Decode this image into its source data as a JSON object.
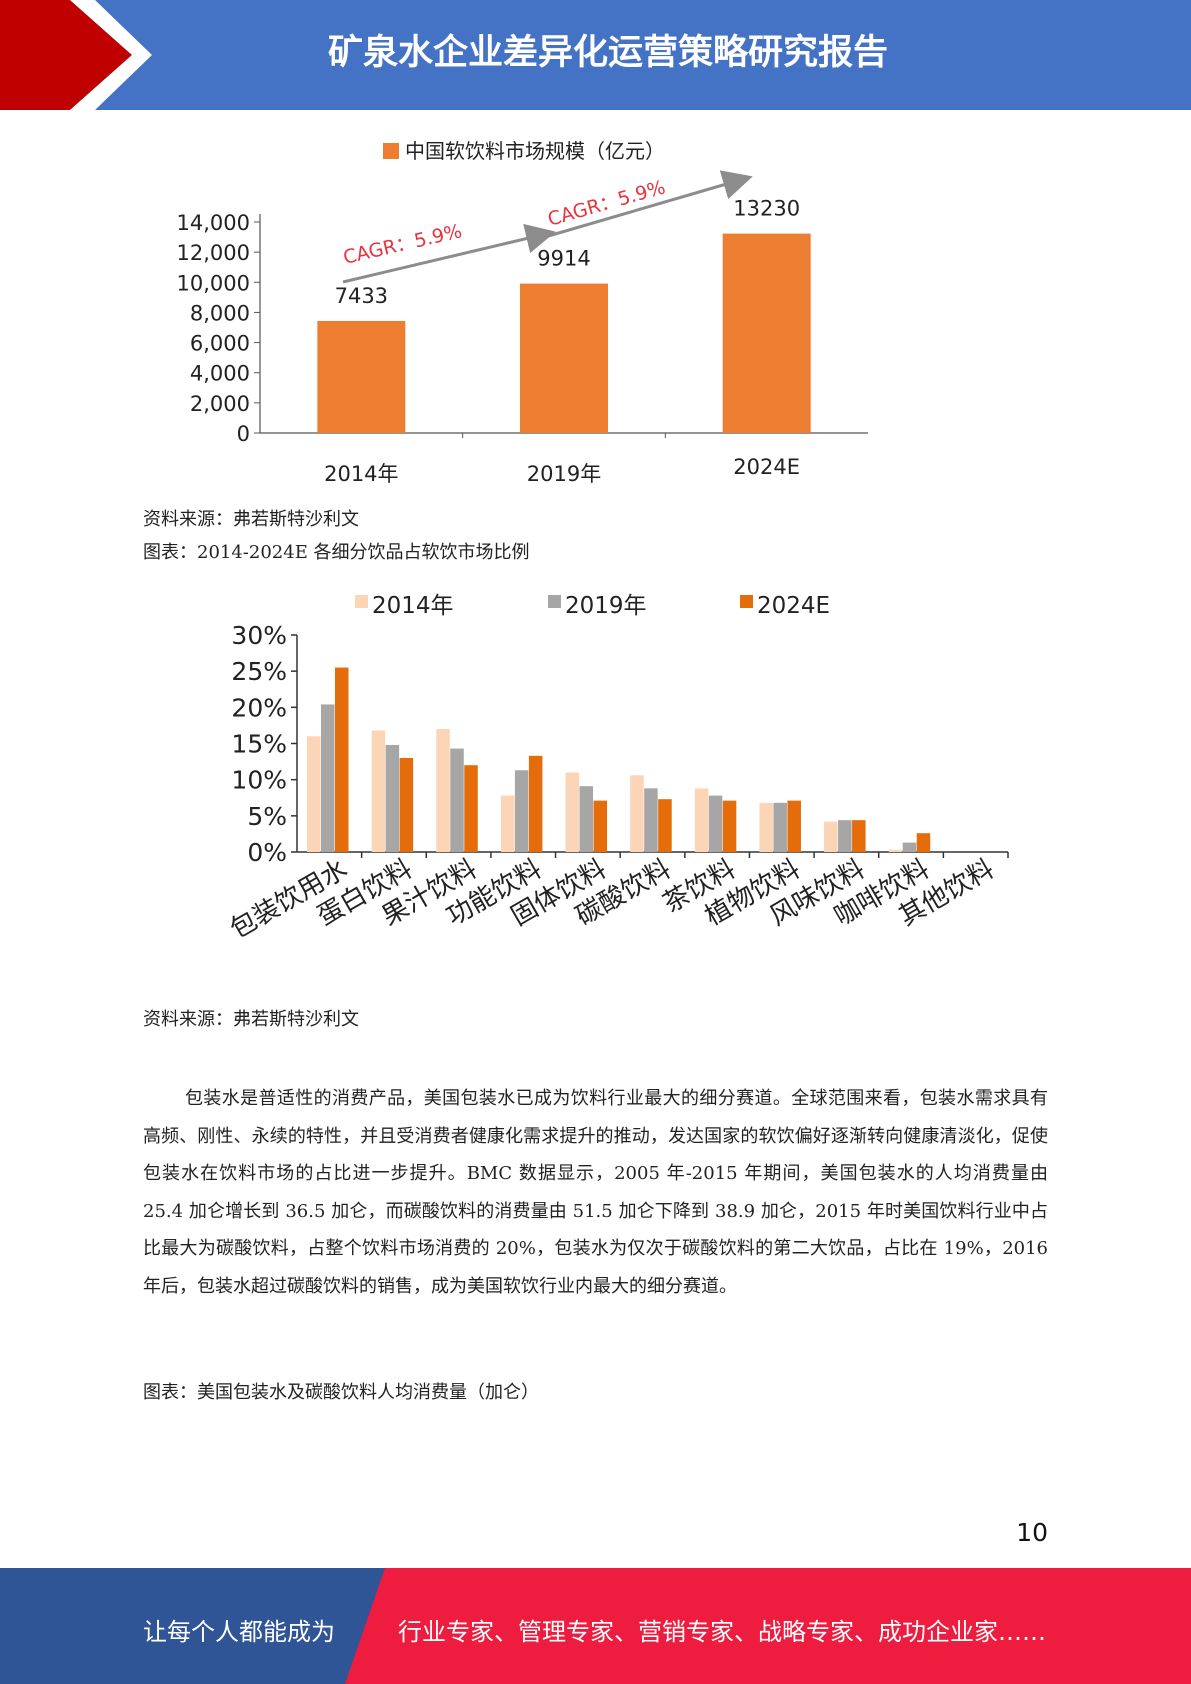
{
  "header": {
    "title": "矿泉水企业差异化运营策略研究报告"
  },
  "chart1": {
    "chart_data": {
      "type": "bar",
      "legend": "中国软饮料市场规模（亿元）",
      "categories": [
        "2014年",
        "2019年",
        "2024E"
      ],
      "values": [
        7433,
        9914,
        13230
      ],
      "ylim": [
        0,
        14000
      ],
      "yticks": [
        "0",
        "2,000",
        "4,000",
        "6,000",
        "8,000",
        "10,000",
        "12,000",
        "14,000"
      ],
      "annotations": [
        "CAGR：5.9%",
        "CAGR：5.9%"
      ],
      "bar_color": "#ed7d31",
      "annotation_color": "#e8323c"
    }
  },
  "source1": "资料来源：弗若斯特沙利文",
  "figure2_title": "图表：2014-2024E 各细分饮品占软饮市场比例",
  "chart2": {
    "chart_data": {
      "type": "bar",
      "categories": [
        "包装饮用水",
        "蛋白饮料",
        "果汁饮料",
        "功能饮料",
        "固体饮料",
        "碳酸饮料",
        "茶饮料",
        "植物饮料",
        "风味饮料",
        "咖啡饮料",
        "其他饮料"
      ],
      "series": [
        {
          "name": "2014年",
          "color": "#fbd5b5",
          "values": [
            16,
            16.8,
            17,
            7.8,
            11,
            10.6,
            8.8,
            6.8,
            4.2,
            0.3,
            0
          ]
        },
        {
          "name": "2019年",
          "color": "#a6a6a6",
          "values": [
            20.4,
            14.8,
            14.3,
            11.3,
            9.1,
            8.8,
            7.8,
            6.8,
            4.4,
            1.3,
            0
          ]
        },
        {
          "name": "2024E",
          "color": "#e46c0a",
          "values": [
            25.5,
            13,
            12,
            13.3,
            7.1,
            7.3,
            7.1,
            7.1,
            4.4,
            2.6,
            0
          ]
        }
      ],
      "ylim": [
        0,
        30
      ],
      "yticks": [
        "0%",
        "5%",
        "10%",
        "15%",
        "20%",
        "25%",
        "30%"
      ]
    }
  },
  "source2": "资料来源：弗若斯特沙利文",
  "paragraph": "包装水是普适性的消费产品，美国包装水已成为饮料行业最大的细分赛道。全球范围来看，包装水需求具有高频、刚性、永续的特性，并且受消费者健康化需求提升的推动，发达国家的软饮偏好逐渐转向健康清淡化，促使包装水在饮料市场的占比进一步提升。BMC 数据显示，2005 年-2015 年期间，美国包装水的人均消费量由 25.4 加仑增长到 36.5 加仑，而碳酸饮料的消费量由 51.5 加仑下降到 38.9 加仑，2015 年时美国饮料行业中占比最大为碳酸饮料，占整个饮料市场消费的 20%，包装水为仅次于碳酸饮料的第二大饮品，占比在 19%，2016 年后，包装水超过碳酸饮料的销售，成为美国软饮行业内最大的细分赛道。",
  "figure3_title": "图表：美国包装水及碳酸饮料人均消费量（加仑）",
  "page_number": "10",
  "footer": {
    "left_text": "让每个人都能成为",
    "right_text": "行业专家、管理专家、营销专家、战略专家、成功企业家……"
  }
}
